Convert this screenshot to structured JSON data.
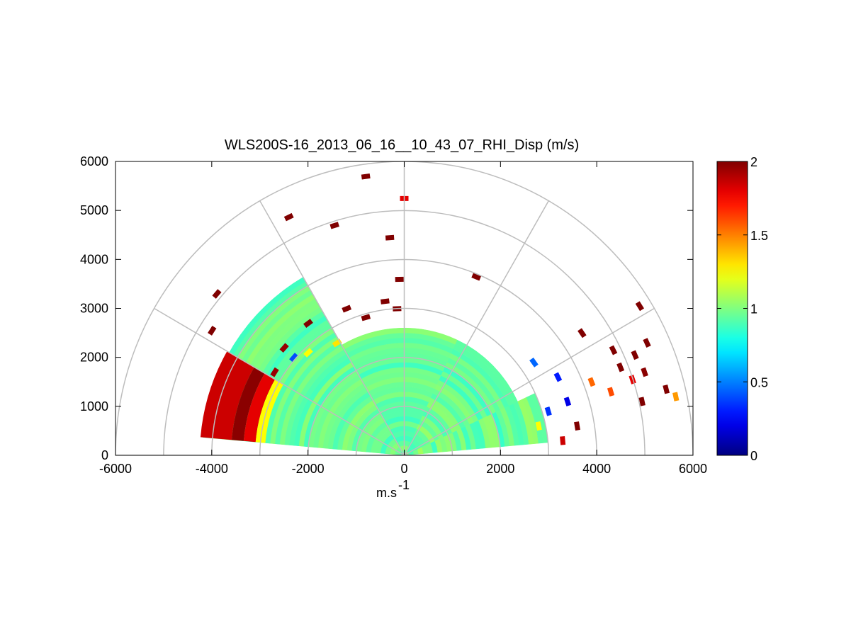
{
  "chart_data": {
    "type": "heatmap",
    "subtype": "polar-rhi-sector",
    "title": "WLS200S-16_2013_06_16__10_43_07_RHI_Disp (m/s)",
    "xlabel": "m.s",
    "xlabel_superscript": "-1",
    "ylabel": "",
    "xlim": [
      -6000,
      6000
    ],
    "ylim": [
      0,
      6000
    ],
    "xticks": [
      -6000,
      -4000,
      -2000,
      0,
      2000,
      4000,
      6000
    ],
    "yticks": [
      0,
      1000,
      2000,
      3000,
      4000,
      5000,
      6000
    ],
    "xtick_labels": [
      "-6000",
      "-4000",
      "-2000",
      "0",
      "2000",
      "4000",
      "6000"
    ],
    "ytick_labels": [
      "0",
      "1000",
      "2000",
      "3000",
      "4000",
      "5000",
      "6000"
    ],
    "polar_grid": {
      "range_rings": [
        1000,
        2000,
        3000,
        4000,
        5000,
        6000
      ],
      "spokes_deg": [
        0,
        30,
        60,
        90,
        120,
        150,
        180
      ]
    },
    "colormap": "jet",
    "colorbar": {
      "min": 0,
      "max": 2,
      "ticks": [
        0,
        0.5,
        1,
        1.5,
        2
      ],
      "tick_labels": [
        "0",
        "0.5",
        "1",
        "1.5",
        "2"
      ],
      "placement": "right"
    },
    "range_gate_m": 100,
    "background_value": 0.95,
    "regions": [
      {
        "az_min": 5,
        "az_max": 25,
        "r_max": 3000,
        "center": 0.95,
        "spread": 0.12
      },
      {
        "az_min": 25,
        "az_max": 65,
        "r_max": 2600,
        "center": 0.95,
        "spread": 0.1
      },
      {
        "az_min": 65,
        "az_max": 120,
        "r_max": 2600,
        "center": 0.95,
        "spread": 0.08
      },
      {
        "az_min": 120,
        "az_max": 175,
        "r_max": 4200,
        "center": 0.95,
        "spread": 0.08
      }
    ],
    "wedge_bands": [
      {
        "r0": 3600,
        "r1": 4250,
        "value": 1.85
      },
      {
        "r0": 3350,
        "r1": 3600,
        "value": 1.98
      },
      {
        "r0": 3100,
        "r1": 3350,
        "value": 1.8
      },
      {
        "r0": 2900,
        "r1": 3100,
        "value": 1.25
      }
    ],
    "outliers": [
      {
        "x": -800,
        "y": 5700,
        "value": 2.0
      },
      {
        "x": 0,
        "y": 5250,
        "value": 1.8
      },
      {
        "x": -2400,
        "y": 4870,
        "value": 2.0
      },
      {
        "x": -1450,
        "y": 4700,
        "value": 2.0
      },
      {
        "x": -300,
        "y": 4450,
        "value": 2.0
      },
      {
        "x": -3900,
        "y": 3300,
        "value": 2.0
      },
      {
        "x": 1500,
        "y": 3650,
        "value": 2.0
      },
      {
        "x": -100,
        "y": 3600,
        "value": 2.0
      },
      {
        "x": 4900,
        "y": 3050,
        "value": 2.0
      },
      {
        "x": -400,
        "y": 3150,
        "value": 2.0
      },
      {
        "x": -150,
        "y": 3000,
        "value": 2.0
      },
      {
        "x": -1200,
        "y": 3000,
        "value": 2.0
      },
      {
        "x": -800,
        "y": 2820,
        "value": 2.0
      },
      {
        "x": -4000,
        "y": 2550,
        "value": 2.0
      },
      {
        "x": -2000,
        "y": 2700,
        "value": 2.0
      },
      {
        "x": 3700,
        "y": 2500,
        "value": 2.0
      },
      {
        "x": 4350,
        "y": 2150,
        "value": 2.0
      },
      {
        "x": 4800,
        "y": 2050,
        "value": 2.0
      },
      {
        "x": 5050,
        "y": 2300,
        "value": 2.0
      },
      {
        "x": 4500,
        "y": 1800,
        "value": 2.0
      },
      {
        "x": 4750,
        "y": 1550,
        "value": 1.8
      },
      {
        "x": 5000,
        "y": 1700,
        "value": 1.98
      },
      {
        "x": 4300,
        "y": 1300,
        "value": 1.6
      },
      {
        "x": 5450,
        "y": 1350,
        "value": 2.0
      },
      {
        "x": 5650,
        "y": 1200,
        "value": 1.45
      },
      {
        "x": 4950,
        "y": 1100,
        "value": 2.0
      },
      {
        "x": 3600,
        "y": 600,
        "value": 2.0
      },
      {
        "x": 3300,
        "y": 300,
        "value": 1.85
      },
      {
        "x": 3900,
        "y": 1500,
        "value": 1.55
      },
      {
        "x": 3400,
        "y": 1100,
        "value": 0.2
      },
      {
        "x": 3000,
        "y": 900,
        "value": 0.35
      },
      {
        "x": 2800,
        "y": 600,
        "value": 1.25
      },
      {
        "x": 3200,
        "y": 1600,
        "value": 0.3
      },
      {
        "x": 2700,
        "y": 1900,
        "value": 0.45
      },
      {
        "x": -2500,
        "y": 2200,
        "value": 1.95
      },
      {
        "x": -2700,
        "y": 1700,
        "value": 1.95
      },
      {
        "x": -2300,
        "y": 2000,
        "value": 0.4
      },
      {
        "x": -2000,
        "y": 2100,
        "value": 1.25
      },
      {
        "x": -1400,
        "y": 2300,
        "value": 1.3
      }
    ]
  }
}
